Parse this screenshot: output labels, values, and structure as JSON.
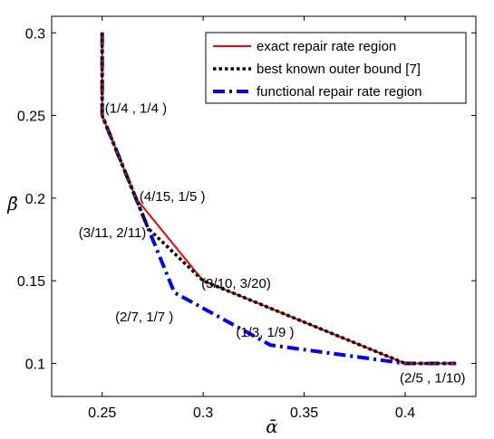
{
  "chart_data": {
    "type": "line",
    "title": "",
    "xlabel": "ᾱ",
    "ylabel": "β̄",
    "xlim": [
      0.225,
      0.435
    ],
    "ylim": [
      0.08,
      0.31
    ],
    "xticks": [
      0.25,
      0.3,
      0.35,
      0.4
    ],
    "yticks": [
      0.1,
      0.15,
      0.2,
      0.25,
      0.3
    ],
    "xtick_labels": [
      "0.25",
      "0.3",
      "0.35",
      "0.4"
    ],
    "ytick_labels": [
      "0.1",
      "0.15",
      "0.2",
      "0.25",
      "0.3"
    ],
    "grid": false,
    "legend_position": "top-right",
    "series": [
      {
        "name": "exact repair rate region",
        "color": "#ff0000",
        "style": "solid",
        "points": [
          [
            0.25,
            0.3
          ],
          [
            0.25,
            0.25
          ],
          [
            0.2667,
            0.2
          ],
          [
            0.3,
            0.15
          ],
          [
            0.4,
            0.1
          ],
          [
            0.425,
            0.1
          ]
        ]
      },
      {
        "name": "best known outer bound [7]",
        "color": "#000000",
        "style": "dotted",
        "points": [
          [
            0.25,
            0.3
          ],
          [
            0.25,
            0.25
          ],
          [
            0.2667,
            0.2
          ],
          [
            0.2727,
            0.1818
          ],
          [
            0.3,
            0.15
          ],
          [
            0.4,
            0.1
          ],
          [
            0.425,
            0.1
          ]
        ]
      },
      {
        "name": "functional repair rate region",
        "color": "#0000ff",
        "style": "dashdot",
        "points": [
          [
            0.25,
            0.3
          ],
          [
            0.25,
            0.25
          ],
          [
            0.2857,
            0.1429
          ],
          [
            0.3333,
            0.1111
          ],
          [
            0.4,
            0.1
          ],
          [
            0.425,
            0.1
          ]
        ]
      }
    ],
    "annotations": [
      {
        "text": "(1/4 , 1/4 )",
        "x": 0.25,
        "y": 0.25
      },
      {
        "text": "(4/15, 1/5 )",
        "x": 0.2667,
        "y": 0.2
      },
      {
        "text": "(3/11, 2/11)",
        "x": 0.2727,
        "y": 0.1818
      },
      {
        "text": "(3/10, 3/20)",
        "x": 0.3,
        "y": 0.15
      },
      {
        "text": "(2/7, 1/7 )",
        "x": 0.2857,
        "y": 0.1429
      },
      {
        "text": "(1/3, 1/9 )",
        "x": 0.3333,
        "y": 0.1111
      },
      {
        "text": "(2/5 , 1/10)",
        "x": 0.4,
        "y": 0.1
      }
    ]
  }
}
